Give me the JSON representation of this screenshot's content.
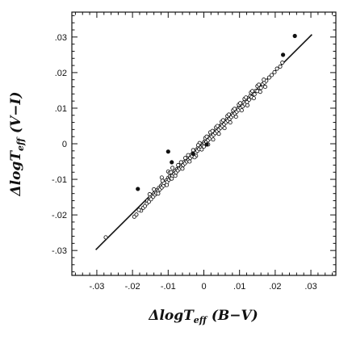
{
  "chart_data": {
    "type": "scatter",
    "title": "",
    "xlabel": {
      "prefix": "ΔlogT",
      "sub": "eff",
      "suffix": " (B−V)"
    },
    "ylabel": {
      "prefix": "ΔlogT",
      "sub": "eff",
      "suffix": " (V−I)"
    },
    "xlim": [
      -0.037,
      0.037
    ],
    "ylim": [
      -0.037,
      0.037
    ],
    "x_ticks": [
      -0.03,
      -0.02,
      -0.01,
      0,
      0.01,
      0.02,
      0.03
    ],
    "y_ticks": [
      -0.03,
      -0.02,
      -0.01,
      0,
      0.01,
      0.02,
      0.03
    ],
    "x_tick_labels": [
      "-.03",
      "-.02",
      "-.01",
      "0",
      ".01",
      ".02",
      ".03"
    ],
    "y_tick_labels": [
      "-.03",
      "-.02",
      "-.01",
      "0",
      ".01",
      ".02",
      ".03"
    ],
    "minor_tick_step": 0.002,
    "grid": false,
    "colors": {
      "axes": "#111111",
      "markers": "#111111",
      "fit_line": "#111111"
    },
    "fit_line": {
      "name": "",
      "points": [
        [
          -0.0303,
          -0.0298
        ],
        [
          0.0303,
          0.0307
        ]
      ]
    },
    "series": [
      {
        "name": "",
        "marker": "open-circle",
        "points": [
          [
            -0.0275,
            -0.0263
          ],
          [
            -0.0195,
            -0.0205
          ],
          [
            -0.0189,
            -0.0199
          ],
          [
            -0.0176,
            -0.0188
          ],
          [
            -0.017,
            -0.018
          ],
          [
            -0.0165,
            -0.0175
          ],
          [
            -0.016,
            -0.0168
          ],
          [
            -0.0158,
            -0.016
          ],
          [
            -0.0154,
            -0.0163
          ],
          [
            -0.015,
            -0.015
          ],
          [
            -0.0148,
            -0.0156
          ],
          [
            -0.0145,
            -0.0145
          ],
          [
            -0.0142,
            -0.0149
          ],
          [
            -0.014,
            -0.014
          ],
          [
            -0.0137,
            -0.0143
          ],
          [
            -0.0135,
            -0.0134
          ],
          [
            -0.0133,
            -0.0139
          ],
          [
            -0.013,
            -0.013
          ],
          [
            -0.0128,
            -0.0134
          ],
          [
            -0.0126,
            -0.0124
          ],
          [
            -0.0123,
            -0.0128
          ],
          [
            -0.012,
            -0.0118
          ],
          [
            -0.0118,
            -0.0123
          ],
          [
            -0.0116,
            -0.0114
          ],
          [
            -0.0113,
            -0.0118
          ],
          [
            -0.011,
            -0.0107
          ],
          [
            -0.0108,
            -0.0112
          ],
          [
            -0.0105,
            -0.0103
          ],
          [
            -0.0103,
            -0.0108
          ],
          [
            -0.01,
            -0.0096
          ],
          [
            -0.0098,
            -0.0101
          ],
          [
            -0.0095,
            -0.0092
          ],
          [
            -0.0093,
            -0.0097
          ],
          [
            -0.009,
            -0.0086
          ],
          [
            -0.0088,
            -0.009
          ],
          [
            -0.0085,
            -0.0081
          ],
          [
            -0.0083,
            -0.0085
          ],
          [
            -0.008,
            -0.0076
          ],
          [
            -0.0078,
            -0.0081
          ],
          [
            -0.0075,
            -0.0071
          ],
          [
            -0.0073,
            -0.0075
          ],
          [
            -0.007,
            -0.0066
          ],
          [
            -0.0068,
            -0.007
          ],
          [
            -0.0065,
            -0.0061
          ],
          [
            -0.0063,
            -0.0066
          ],
          [
            -0.006,
            -0.0056
          ],
          [
            -0.0058,
            -0.006
          ],
          [
            -0.0055,
            -0.0051
          ],
          [
            -0.0053,
            -0.0055
          ],
          [
            -0.005,
            -0.0046
          ],
          [
            -0.0048,
            -0.005
          ],
          [
            -0.0045,
            -0.0041
          ],
          [
            -0.0043,
            -0.0046
          ],
          [
            -0.004,
            -0.0036
          ],
          [
            -0.0038,
            -0.004
          ],
          [
            -0.0035,
            -0.0031
          ],
          [
            -0.0033,
            -0.0035
          ],
          [
            -0.003,
            -0.0026
          ],
          [
            -0.0028,
            -0.003
          ],
          [
            -0.0025,
            -0.0021
          ],
          [
            -0.0023,
            -0.0025
          ],
          [
            -0.002,
            -0.0016
          ],
          [
            -0.0018,
            -0.002
          ],
          [
            -0.0015,
            -0.0011
          ],
          [
            -0.0013,
            -0.0015
          ],
          [
            -0.001,
            -0.0006
          ],
          [
            -0.0008,
            -0.001
          ],
          [
            -0.0005,
            -0.0001
          ],
          [
            -0.0003,
            -0.0005
          ],
          [
            0.0,
            0.0004
          ],
          [
            0.0002,
            0.0
          ],
          [
            0.0005,
            0.0009
          ],
          [
            0.0007,
            0.0005
          ],
          [
            0.001,
            0.0014
          ],
          [
            0.0012,
            0.001
          ],
          [
            0.0015,
            0.0019
          ],
          [
            0.0017,
            0.0015
          ],
          [
            0.002,
            0.0024
          ],
          [
            0.0022,
            0.002
          ],
          [
            0.0025,
            0.0029
          ],
          [
            0.0027,
            0.0025
          ],
          [
            0.003,
            0.0034
          ],
          [
            0.0032,
            0.003
          ],
          [
            0.0035,
            0.0039
          ],
          [
            0.0037,
            0.0035
          ],
          [
            0.004,
            0.0044
          ],
          [
            0.0042,
            0.004
          ],
          [
            0.0045,
            0.0049
          ],
          [
            0.0047,
            0.0045
          ],
          [
            0.005,
            0.0054
          ],
          [
            0.0052,
            0.005
          ],
          [
            0.0055,
            0.0059
          ],
          [
            0.0057,
            0.0055
          ],
          [
            0.006,
            0.0064
          ],
          [
            0.0062,
            0.006
          ],
          [
            0.0065,
            0.0069
          ],
          [
            0.0067,
            0.0065
          ],
          [
            0.007,
            0.0074
          ],
          [
            0.0072,
            0.007
          ],
          [
            0.0075,
            0.0079
          ],
          [
            0.0077,
            0.0075
          ],
          [
            0.008,
            0.0084
          ],
          [
            0.0082,
            0.008
          ],
          [
            0.0085,
            0.0089
          ],
          [
            0.0087,
            0.0085
          ],
          [
            0.009,
            0.0094
          ],
          [
            0.0092,
            0.009
          ],
          [
            0.0095,
            0.0099
          ],
          [
            0.0097,
            0.0095
          ],
          [
            0.01,
            0.0104
          ],
          [
            0.0103,
            0.01
          ],
          [
            0.0106,
            0.011
          ],
          [
            0.0109,
            0.0105
          ],
          [
            0.0112,
            0.0116
          ],
          [
            0.0115,
            0.0111
          ],
          [
            0.0118,
            0.0122
          ],
          [
            0.0121,
            0.0117
          ],
          [
            0.0124,
            0.0128
          ],
          [
            0.0127,
            0.0124
          ],
          [
            0.013,
            0.0134
          ],
          [
            0.0134,
            0.0131
          ],
          [
            0.0138,
            0.0141
          ],
          [
            0.0142,
            0.0139
          ],
          [
            0.0146,
            0.0149
          ],
          [
            0.015,
            0.0148
          ],
          [
            0.0155,
            0.0158
          ],
          [
            0.016,
            0.0157
          ],
          [
            0.0165,
            0.0168
          ],
          [
            0.017,
            0.0172
          ],
          [
            0.0175,
            0.0177
          ],
          [
            0.0183,
            0.0186
          ],
          [
            0.019,
            0.0193
          ],
          [
            0.0198,
            0.0201
          ],
          [
            0.0205,
            0.0211
          ],
          [
            0.0214,
            0.0217
          ],
          [
            -0.0118,
            -0.0095
          ],
          [
            -0.0112,
            -0.011
          ],
          [
            -0.01,
            -0.0078
          ],
          [
            -0.0096,
            -0.0082
          ],
          [
            -0.0088,
            -0.0068
          ],
          [
            -0.008,
            -0.009
          ],
          [
            -0.0072,
            -0.006
          ],
          [
            -0.006,
            -0.007
          ],
          [
            -0.0052,
            -0.004
          ],
          [
            -0.004,
            -0.005
          ],
          [
            -0.003,
            -0.0018
          ],
          [
            -0.0022,
            -0.0034
          ],
          [
            -0.0012,
            0.0002
          ],
          [
            -0.0006,
            -0.0016
          ],
          [
            0.0004,
            0.0016
          ],
          [
            0.0012,
            -0.0002
          ],
          [
            0.0018,
            0.0032
          ],
          [
            0.0026,
            0.0012
          ],
          [
            0.0034,
            0.0046
          ],
          [
            0.0042,
            0.0028
          ],
          [
            0.005,
            0.0062
          ],
          [
            0.0058,
            0.0044
          ],
          [
            0.0066,
            0.0078
          ],
          [
            0.0074,
            0.006
          ],
          [
            0.0082,
            0.0094
          ],
          [
            0.009,
            0.0076
          ],
          [
            0.0098,
            0.011
          ],
          [
            0.0106,
            0.0094
          ],
          [
            0.0114,
            0.0126
          ],
          [
            0.0122,
            0.0108
          ],
          [
            0.0132,
            0.0144
          ],
          [
            0.014,
            0.0128
          ],
          [
            0.015,
            0.0162
          ],
          [
            0.0158,
            0.0146
          ],
          [
            0.0168,
            0.018
          ],
          [
            -0.014,
            -0.0128
          ],
          [
            -0.0128,
            -0.014
          ],
          [
            -0.0116,
            -0.0104
          ],
          [
            -0.0104,
            -0.0116
          ],
          [
            -0.0092,
            -0.008
          ],
          [
            -0.0064,
            -0.0052
          ],
          [
            -0.0044,
            -0.0032
          ],
          [
            -0.0026,
            -0.0038
          ],
          [
            -0.0016,
            -0.0004
          ],
          [
            0.0008,
            0.002
          ],
          [
            0.0024,
            0.0036
          ],
          [
            0.0038,
            0.005
          ],
          [
            0.0054,
            0.0066
          ],
          [
            0.007,
            0.0082
          ],
          [
            0.0086,
            0.0098
          ],
          [
            0.0102,
            0.0114
          ],
          [
            0.0118,
            0.013
          ],
          [
            0.0136,
            0.0148
          ],
          [
            0.0154,
            0.0166
          ],
          [
            0.0172,
            0.016
          ],
          [
            0.022,
            0.0228
          ],
          [
            -0.0182,
            -0.0186
          ],
          [
            -0.0152,
            -0.0142
          ],
          [
            -0.009,
            -0.0098
          ],
          [
            0.0,
            -0.0008
          ]
        ]
      },
      {
        "name": "",
        "marker": "filled-dot",
        "points": [
          [
            0.0255,
            0.0303
          ],
          [
            0.0222,
            0.025
          ],
          [
            -0.0185,
            -0.0127
          ],
          [
            -0.01,
            -0.0022
          ],
          [
            -0.009,
            -0.0052
          ],
          [
            -0.003,
            -0.0028
          ],
          [
            0.0008,
            -0.0002
          ]
        ]
      }
    ]
  }
}
